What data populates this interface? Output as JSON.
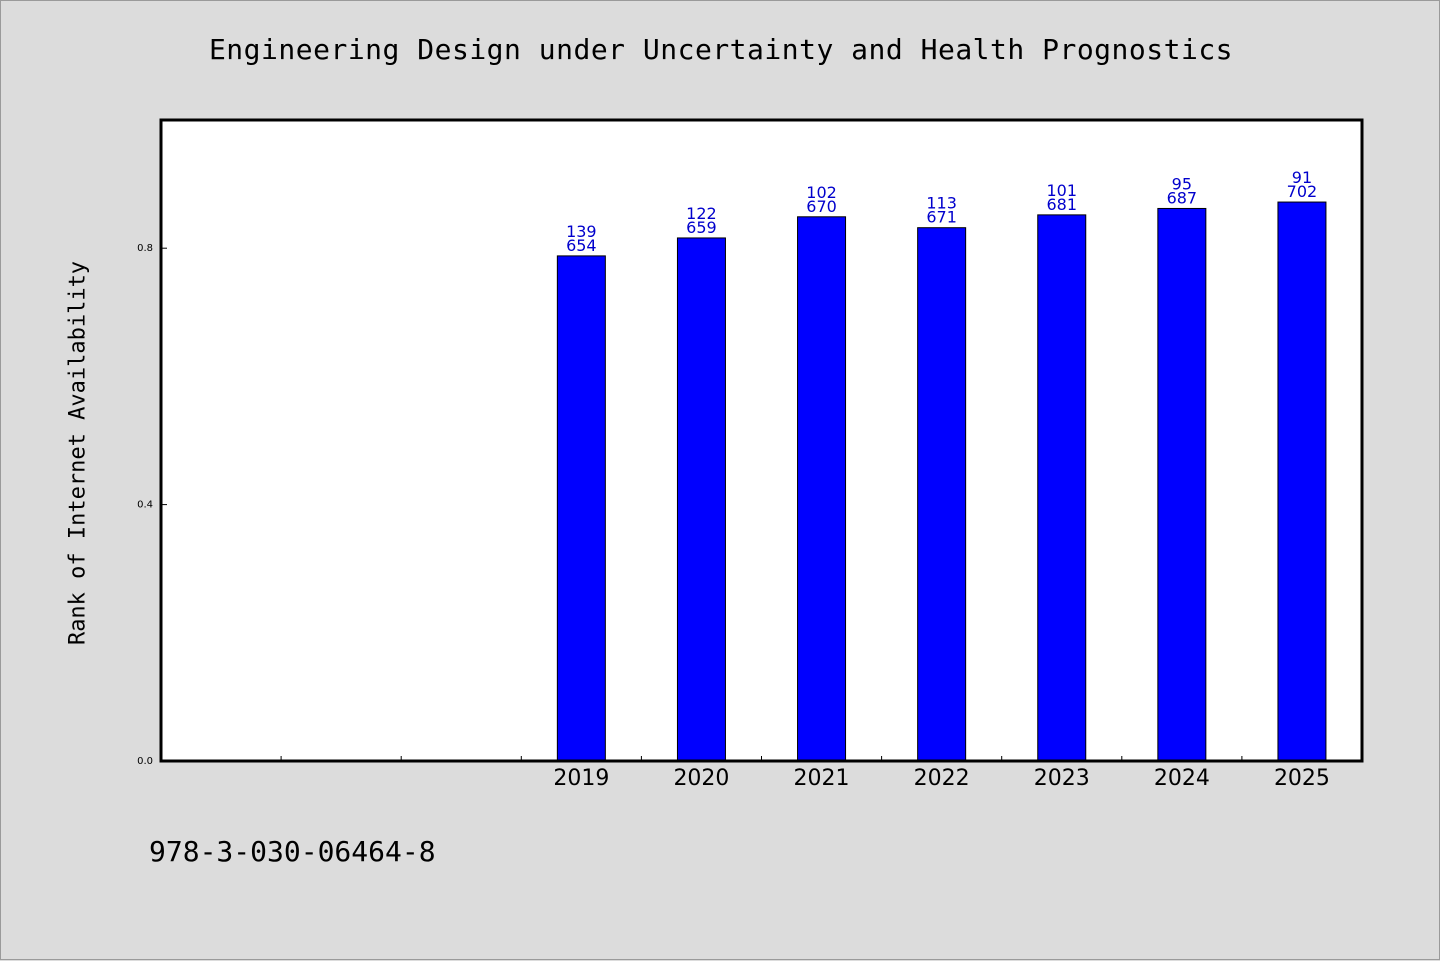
{
  "page": {
    "isbn": "978-3-030-06464-8",
    "background_color": "#dcdcdc",
    "bar_color": "#0000ff",
    "label_color": "#0000cc"
  },
  "chart_data": {
    "type": "bar",
    "title": "Engineering Design under Uncertainty and Health Prognostics",
    "xlabel": "",
    "ylabel": "Rank of Internet Availability",
    "categories": [
      "",
      "",
      "",
      "2019",
      "2020",
      "2021",
      "2022",
      "2023",
      "2024",
      "2025"
    ],
    "values": [
      null,
      null,
      null,
      0.788,
      0.816,
      0.849,
      0.832,
      0.852,
      0.862,
      0.872
    ],
    "value_labels": [
      null,
      null,
      null,
      [
        "139",
        "654"
      ],
      [
        "122",
        "659"
      ],
      [
        "102",
        "670"
      ],
      [
        "113",
        "671"
      ],
      [
        "101",
        "681"
      ],
      [
        "95",
        "687"
      ],
      [
        "91",
        "702"
      ]
    ],
    "yticks": [
      "0.0",
      "0.4",
      "0.8"
    ],
    "ylim": [
      0,
      1.0
    ],
    "grid": false,
    "legend": "none"
  }
}
